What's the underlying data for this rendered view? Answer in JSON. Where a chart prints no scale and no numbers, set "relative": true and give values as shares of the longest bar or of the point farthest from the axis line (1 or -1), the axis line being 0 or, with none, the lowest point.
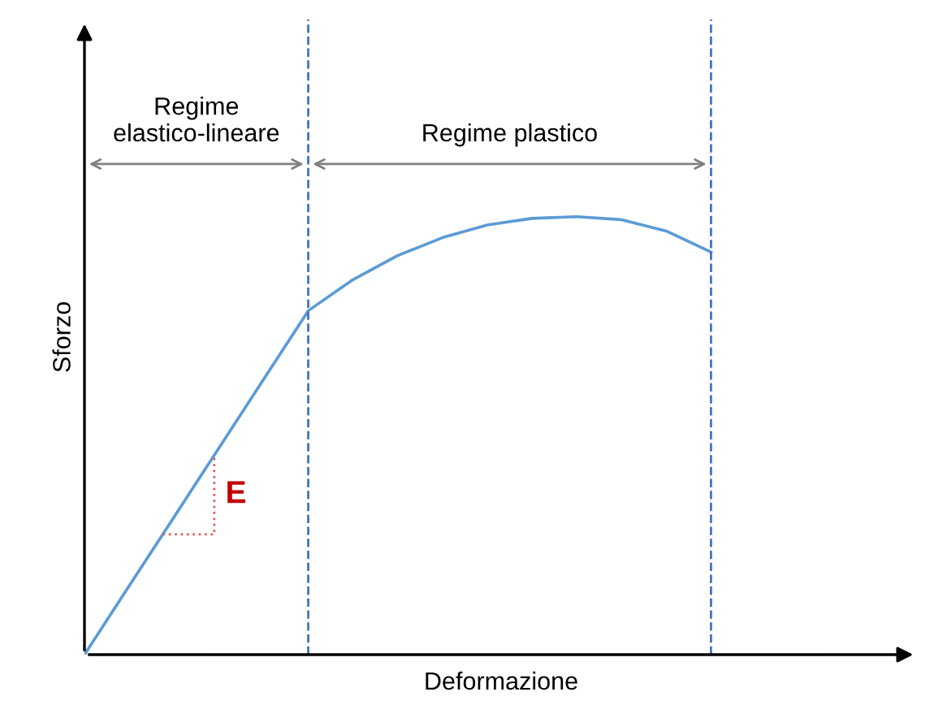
{
  "chart_data": {
    "type": "line",
    "relative": true,
    "xlabel": "Deformazione",
    "ylabel": "Sforzo",
    "categories": [
      null,
      null,
      null,
      null,
      null,
      null,
      null,
      null,
      null,
      null,
      null,
      null,
      null,
      null,
      null
    ],
    "series": [
      {
        "color": "#5b9bd5",
        "values": [
          0,
          0.157,
          0.314,
          0.471,
          0.628,
          0.785,
          0.856,
          0.911,
          0.952,
          0.981,
          0.996,
          1,
          0.993,
          0.967,
          0.919
        ]
      }
    ],
    "annotations": [
      "Regime\nelastico-lineare",
      "Regime plastico",
      "E"
    ],
    "marker": "none",
    "line_style": "solid"
  }
}
